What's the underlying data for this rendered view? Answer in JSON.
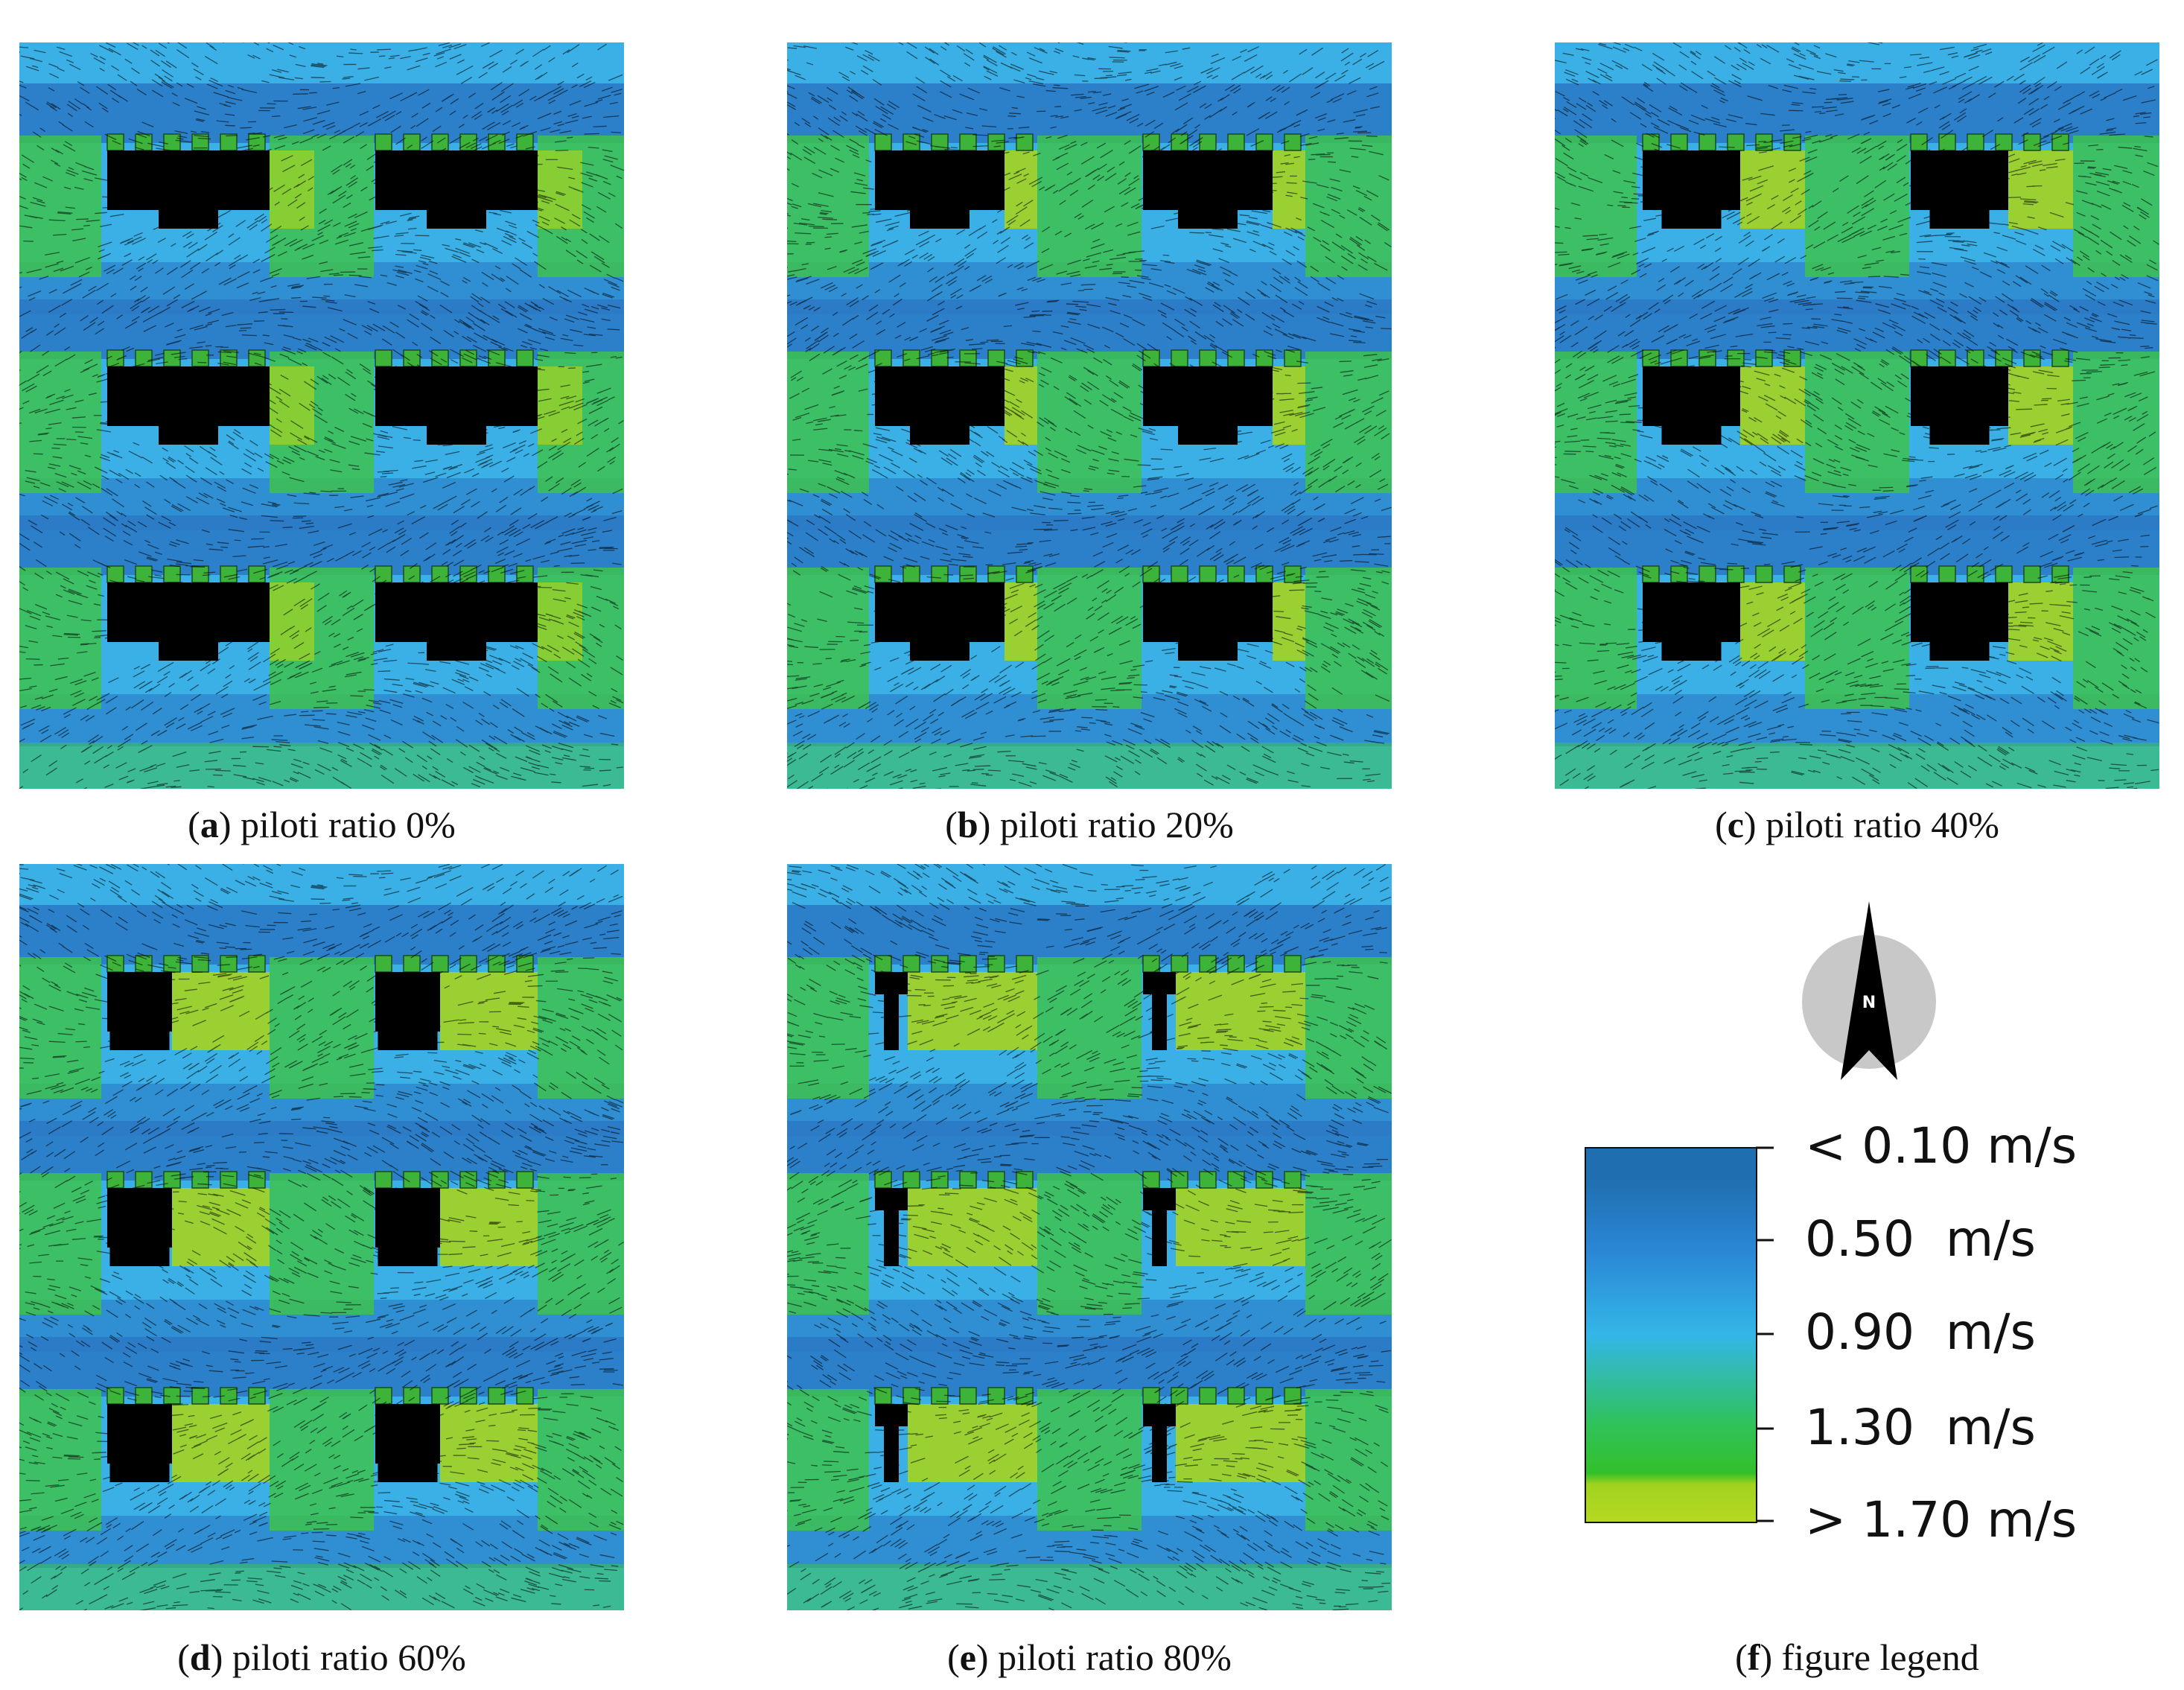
{
  "panels": [
    {
      "letter": "a",
      "label": "piloti ratio 0%",
      "piloti_ratio": 0
    },
    {
      "letter": "b",
      "label": "piloti ratio 20%",
      "piloti_ratio": 20
    },
    {
      "letter": "c",
      "label": "piloti ratio 40%",
      "piloti_ratio": 40
    },
    {
      "letter": "d",
      "label": "piloti ratio 60%",
      "piloti_ratio": 60
    },
    {
      "letter": "e",
      "label": "piloti ratio 80%",
      "piloti_ratio": 80
    }
  ],
  "legend": {
    "letter": "f",
    "label": "figure legend",
    "north_label": "N",
    "ticks": [
      "< 0.10 m/s",
      "0.50  m/s",
      "0.90  m/s",
      "1.30  m/s",
      "> 1.70 m/s"
    ],
    "colors": [
      "#1f6fb0",
      "#2a86d4",
      "#33b6e8",
      "#2fc25a",
      "#9fd31f"
    ]
  },
  "colors": {
    "building": "#000000",
    "slow": "#2a78c4",
    "medium": "#3ab0e6",
    "fast": "#3dc24e",
    "fastest": "#a5d41e",
    "piloti_cell": "#3eb33a"
  }
}
